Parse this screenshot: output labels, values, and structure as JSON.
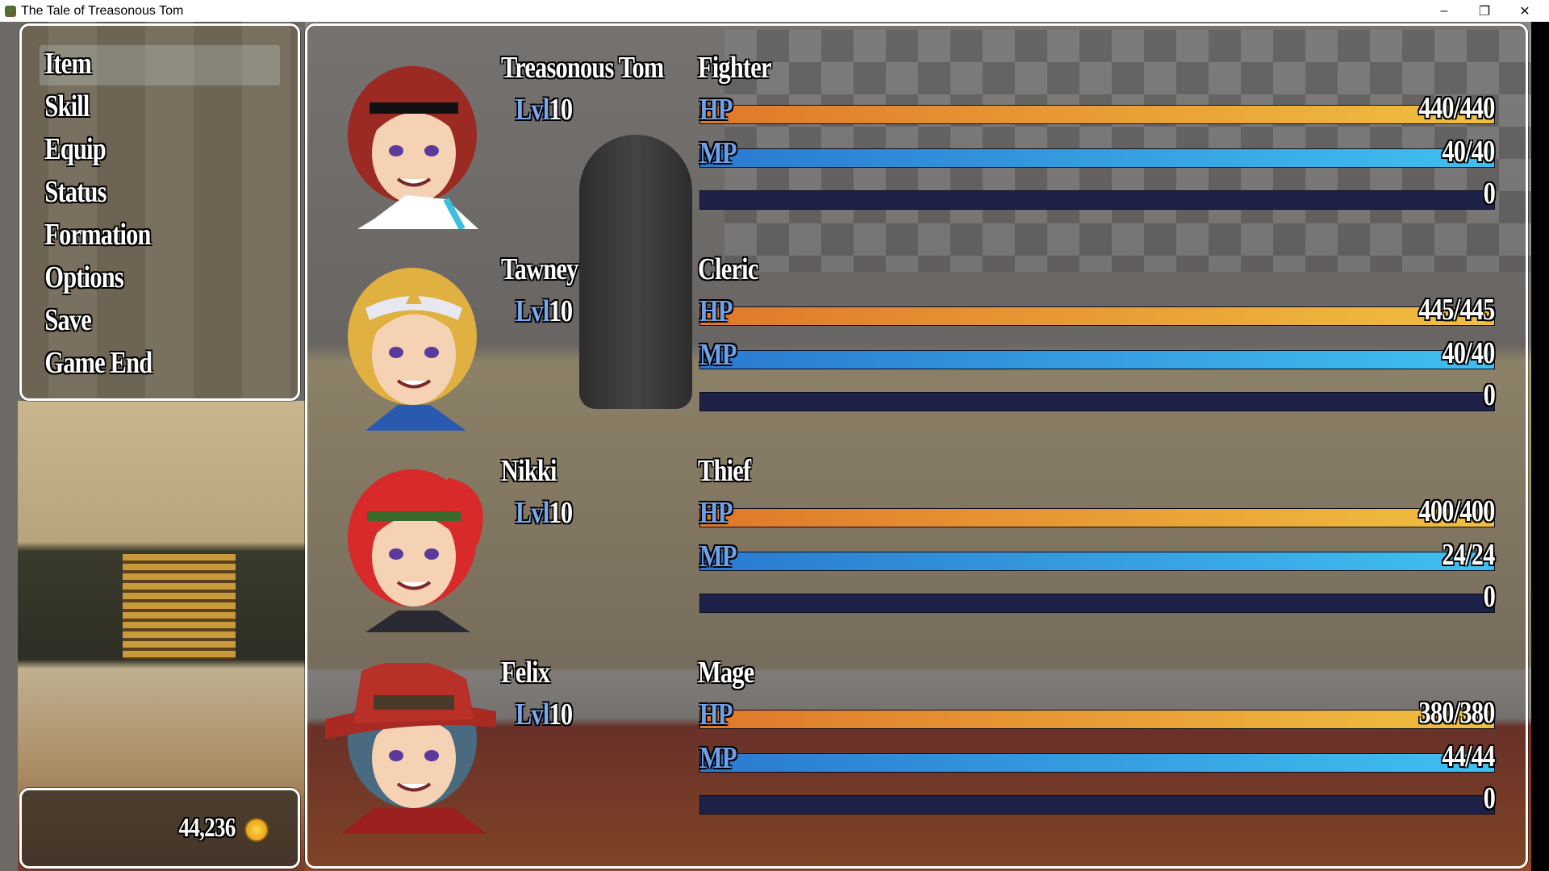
{
  "window": {
    "title": "The Tale of Treasonous Tom",
    "minimize": "–",
    "restore": "❐",
    "close": "✕"
  },
  "menu": {
    "items": [
      "Item",
      "Skill",
      "Equip",
      "Status",
      "Formation",
      "Options",
      "Save",
      "Game End"
    ],
    "selected": "Item"
  },
  "gold": {
    "value": "44,236",
    "icon": "gold-coin-icon"
  },
  "labels": {
    "lvl": "Lvl",
    "hp": "HP",
    "mp": "MP"
  },
  "colors": {
    "hp_bar": "#f0c040",
    "mp_bar": "#40c0f0",
    "tp_bar": "#1e2248",
    "stat_label": "#6fa0ea"
  },
  "party": [
    {
      "name": "Treasonous Tom",
      "class": "Fighter",
      "level": "10",
      "hp": "440/440",
      "hp_pct": 100,
      "mp": "40/40",
      "mp_pct": 100,
      "tp": "0",
      "tp_pct": 0,
      "hair": "#9a2a22"
    },
    {
      "name": "Tawney",
      "class": "Cleric",
      "level": "10",
      "hp": "445/445",
      "hp_pct": 100,
      "mp": "40/40",
      "mp_pct": 100,
      "tp": "0",
      "tp_pct": 0,
      "hair": "#e0b040"
    },
    {
      "name": "Nikki",
      "class": "Thief",
      "level": "10",
      "hp": "400/400",
      "hp_pct": 100,
      "mp": "24/24",
      "mp_pct": 100,
      "tp": "0",
      "tp_pct": 0,
      "hair": "#d82a2a"
    },
    {
      "name": "Felix",
      "class": "Mage",
      "level": "10",
      "hp": "380/380",
      "hp_pct": 100,
      "mp": "44/44",
      "mp_pct": 100,
      "tp": "0",
      "tp_pct": 0,
      "hair": "#4a6a80"
    }
  ]
}
